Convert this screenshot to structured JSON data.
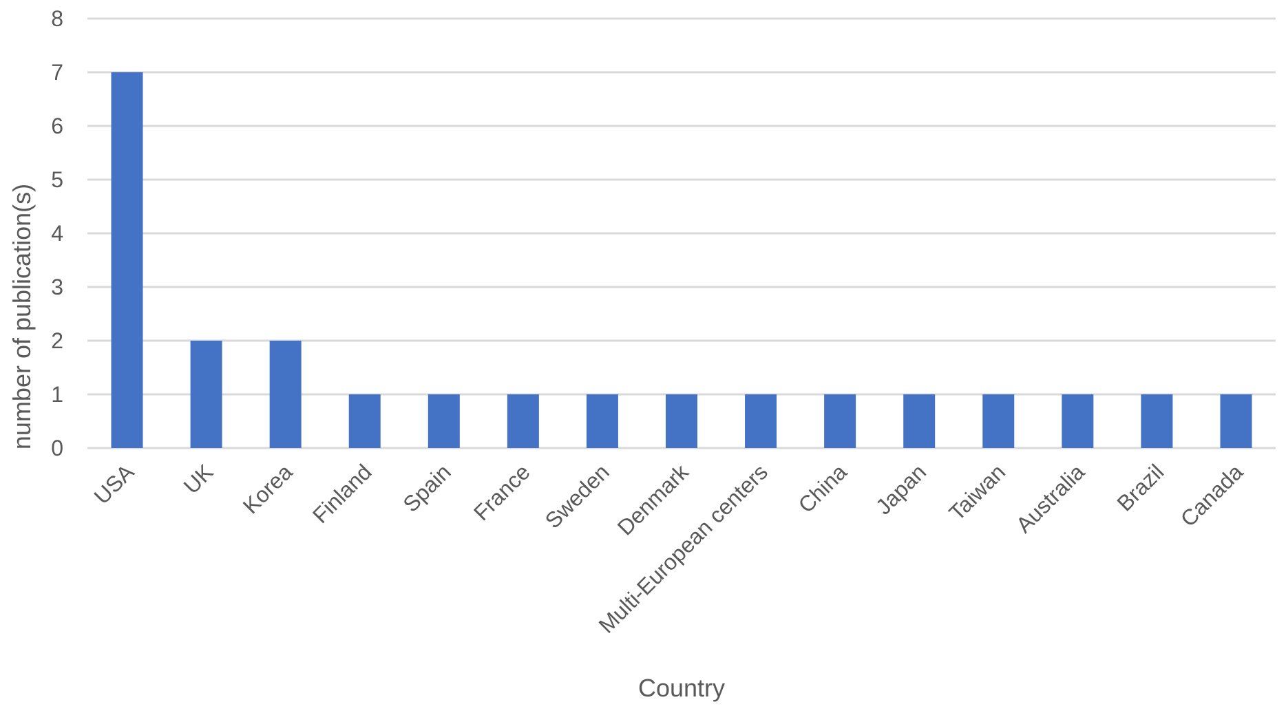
{
  "chart_data": {
    "type": "bar",
    "title": "",
    "xlabel": "Country",
    "ylabel": "number of publication(s)",
    "categories": [
      "USA",
      "UK",
      "Korea",
      "Finland",
      "Spain",
      "France",
      "Sweden",
      "Denmark",
      "Multi-European centers",
      "China",
      "Japan",
      "Taiwan",
      "Australia",
      "Brazil",
      "Canada"
    ],
    "values": [
      7,
      2,
      2,
      1,
      1,
      1,
      1,
      1,
      1,
      1,
      1,
      1,
      1,
      1,
      1
    ],
    "ylim": [
      0,
      8
    ],
    "yticks": [
      0,
      1,
      2,
      3,
      4,
      5,
      6,
      7,
      8
    ],
    "grid": true,
    "legend": "none",
    "bar_color": "#4472c4"
  }
}
